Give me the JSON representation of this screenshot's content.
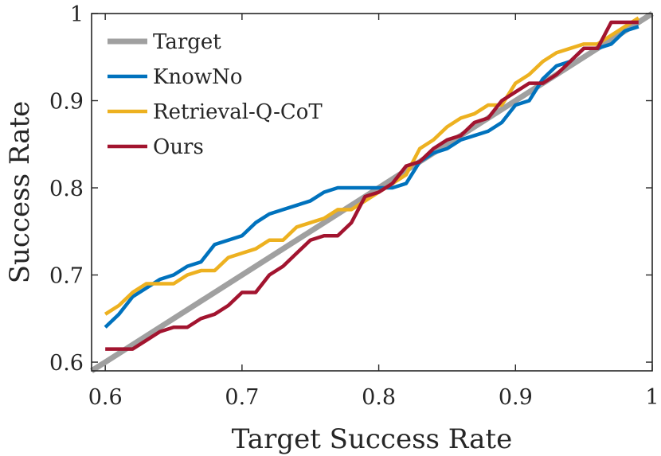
{
  "chart_data": {
    "type": "line",
    "title": "",
    "xlabel": "Target Success Rate",
    "ylabel": "Success Rate",
    "xlim": [
      0.59,
      1.0
    ],
    "ylim": [
      0.59,
      1.0
    ],
    "xticks": [
      0.6,
      0.7,
      0.8,
      0.9,
      1.0
    ],
    "xtick_labels": [
      "0.6",
      "0.7",
      "0.8",
      "0.9",
      "1"
    ],
    "yticks": [
      0.6,
      0.7,
      0.8,
      0.9,
      1.0
    ],
    "ytick_labels": [
      "0.6",
      "0.7",
      "0.8",
      "0.9",
      "1"
    ],
    "grid": false,
    "legend_position": "top-left",
    "series": [
      {
        "name": "Target",
        "color": "#a0a0a0",
        "x": [
          0.59,
          1.0
        ],
        "y": [
          0.59,
          1.0
        ]
      },
      {
        "name": "KnowNo",
        "color": "#0072bd",
        "x": [
          0.6,
          0.61,
          0.62,
          0.63,
          0.64,
          0.65,
          0.66,
          0.67,
          0.68,
          0.69,
          0.7,
          0.71,
          0.72,
          0.73,
          0.74,
          0.75,
          0.76,
          0.77,
          0.78,
          0.79,
          0.8,
          0.81,
          0.82,
          0.83,
          0.84,
          0.85,
          0.86,
          0.87,
          0.88,
          0.89,
          0.9,
          0.91,
          0.92,
          0.93,
          0.94,
          0.95,
          0.96,
          0.97,
          0.98,
          0.99
        ],
        "y": [
          0.64,
          0.655,
          0.675,
          0.685,
          0.695,
          0.7,
          0.71,
          0.715,
          0.735,
          0.74,
          0.745,
          0.76,
          0.77,
          0.775,
          0.78,
          0.785,
          0.795,
          0.8,
          0.8,
          0.8,
          0.8,
          0.8,
          0.805,
          0.83,
          0.84,
          0.845,
          0.855,
          0.86,
          0.865,
          0.875,
          0.895,
          0.9,
          0.925,
          0.94,
          0.945,
          0.96,
          0.96,
          0.965,
          0.98,
          0.985
        ]
      },
      {
        "name": "Retrieval-Q-CoT",
        "color": "#edb120",
        "x": [
          0.6,
          0.61,
          0.62,
          0.63,
          0.64,
          0.65,
          0.66,
          0.67,
          0.68,
          0.69,
          0.7,
          0.71,
          0.72,
          0.73,
          0.74,
          0.75,
          0.76,
          0.77,
          0.78,
          0.79,
          0.8,
          0.81,
          0.82,
          0.83,
          0.84,
          0.85,
          0.86,
          0.87,
          0.88,
          0.89,
          0.9,
          0.91,
          0.92,
          0.93,
          0.94,
          0.95,
          0.96,
          0.97,
          0.98,
          0.99
        ],
        "y": [
          0.655,
          0.665,
          0.68,
          0.69,
          0.69,
          0.69,
          0.7,
          0.705,
          0.705,
          0.72,
          0.725,
          0.73,
          0.74,
          0.74,
          0.755,
          0.76,
          0.765,
          0.775,
          0.775,
          0.785,
          0.795,
          0.805,
          0.815,
          0.845,
          0.855,
          0.87,
          0.88,
          0.885,
          0.895,
          0.895,
          0.92,
          0.93,
          0.945,
          0.955,
          0.96,
          0.965,
          0.965,
          0.975,
          0.985,
          0.995
        ]
      },
      {
        "name": "Ours",
        "color": "#a2142f",
        "x": [
          0.6,
          0.61,
          0.62,
          0.63,
          0.64,
          0.65,
          0.66,
          0.67,
          0.68,
          0.69,
          0.7,
          0.71,
          0.72,
          0.73,
          0.74,
          0.75,
          0.76,
          0.77,
          0.78,
          0.79,
          0.8,
          0.81,
          0.82,
          0.83,
          0.84,
          0.85,
          0.86,
          0.87,
          0.88,
          0.89,
          0.9,
          0.91,
          0.92,
          0.93,
          0.94,
          0.95,
          0.96,
          0.97,
          0.98,
          0.99
        ],
        "y": [
          0.615,
          0.615,
          0.615,
          0.625,
          0.635,
          0.64,
          0.64,
          0.65,
          0.655,
          0.665,
          0.68,
          0.68,
          0.7,
          0.71,
          0.725,
          0.74,
          0.745,
          0.745,
          0.76,
          0.79,
          0.795,
          0.805,
          0.825,
          0.83,
          0.845,
          0.855,
          0.86,
          0.875,
          0.88,
          0.9,
          0.91,
          0.92,
          0.92,
          0.93,
          0.945,
          0.96,
          0.96,
          0.99,
          0.99,
          0.99
        ]
      }
    ]
  }
}
